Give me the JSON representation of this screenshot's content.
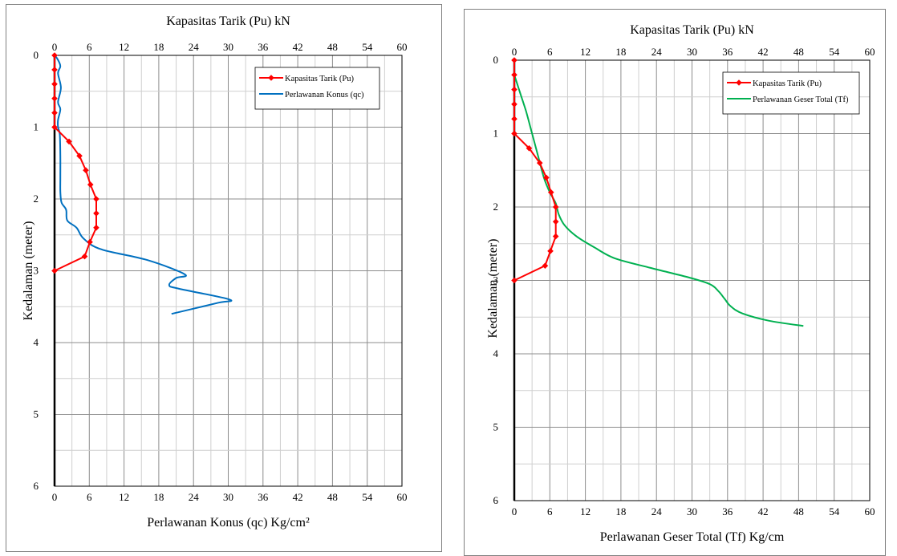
{
  "chart_data": [
    {
      "type": "line",
      "title": "Kapasitas Tarik (Pu) kN",
      "xlabel": "Perlawanan Konus (qc) Kg/cm²",
      "ylabel": "Kedalaman (meter)",
      "xlim": [
        0,
        60
      ],
      "ylim": [
        0,
        6
      ],
      "y_inverted": true,
      "x_ticks": [
        "0",
        "6",
        "12",
        "18",
        "24",
        "30",
        "36",
        "42",
        "48",
        "54",
        "60"
      ],
      "y_ticks": [
        "0",
        "1",
        "2",
        "3",
        "4",
        "5",
        "6"
      ],
      "grid": true,
      "legend_position": "top-right",
      "series": [
        {
          "name": "Kapasitas Tarik (Pu)",
          "color": "#ff0000",
          "marker": "diamond",
          "x": [
            0,
            0,
            0,
            0,
            0,
            0,
            2.5,
            4.3,
            5.4,
            6.2,
            7.2,
            7.2,
            7.2,
            6.1,
            5.2,
            0
          ],
          "y": [
            0,
            0.2,
            0.4,
            0.6,
            0.8,
            1.0,
            1.2,
            1.4,
            1.6,
            1.8,
            2.0,
            2.2,
            2.4,
            2.6,
            2.8,
            3.0
          ]
        },
        {
          "name": "Perlawanan Konus (qc)",
          "color": "#0070c0",
          "marker": "none",
          "x": [
            0,
            0.5,
            1.0,
            0.6,
            1.1,
            0.6,
            1.0,
            0.6,
            0.6,
            0.9,
            1.0,
            1.0,
            1.0,
            1.2,
            2.0,
            2.2,
            3.8,
            5.0,
            8.0,
            16.0,
            22.5,
            21.0,
            19.8,
            21.5,
            30.2,
            28.0,
            20.2
          ],
          "y": [
            0,
            0.05,
            0.15,
            0.25,
            0.45,
            0.65,
            0.75,
            0.9,
            1.0,
            1.1,
            1.4,
            1.7,
            1.9,
            2.05,
            2.15,
            2.3,
            2.4,
            2.55,
            2.7,
            2.85,
            3.05,
            3.1,
            3.2,
            3.25,
            3.4,
            3.45,
            3.6
          ]
        }
      ]
    },
    {
      "type": "line",
      "title": "Kapasitas Tarik (Pu) kN",
      "xlabel": "Perlawanan Geser Total (Tf) Kg/cm",
      "ylabel": "Kedalaman (meter)",
      "xlim": [
        0,
        60
      ],
      "ylim": [
        0,
        6
      ],
      "y_inverted": true,
      "x_ticks": [
        "0",
        "6",
        "12",
        "18",
        "24",
        "30",
        "36",
        "42",
        "48",
        "54",
        "60"
      ],
      "y_ticks": [
        "0",
        "1",
        "2",
        "3",
        "4",
        "5",
        "6"
      ],
      "grid": true,
      "legend_position": "top-right",
      "series": [
        {
          "name": "Kapasitas Tarik (Pu)",
          "color": "#ff0000",
          "marker": "diamond",
          "x": [
            0,
            0,
            0,
            0,
            0,
            0,
            2.5,
            4.3,
            5.4,
            6.2,
            7.0,
            7.0,
            7.0,
            6.1,
            5.2,
            0
          ],
          "y": [
            0,
            0.2,
            0.4,
            0.6,
            0.8,
            1.0,
            1.2,
            1.4,
            1.6,
            1.8,
            2.0,
            2.2,
            2.4,
            2.6,
            2.8,
            3.0
          ]
        },
        {
          "name": "Perlawanan Geser Total (Tf)",
          "color": "#00b050",
          "marker": "none",
          "x": [
            0,
            1.0,
            2.0,
            3.0,
            4.0,
            5.0,
            6.0,
            7.0,
            7.5,
            8.5,
            10.5,
            13.5,
            17.0,
            23.0,
            29.0,
            33.0,
            34.5,
            35.5,
            36.5,
            38.5,
            43.0,
            48.8
          ],
          "y": [
            0.2,
            0.45,
            0.7,
            1.0,
            1.3,
            1.6,
            1.8,
            1.95,
            2.1,
            2.25,
            2.4,
            2.55,
            2.7,
            2.83,
            2.95,
            3.05,
            3.15,
            3.25,
            3.35,
            3.45,
            3.55,
            3.62
          ]
        }
      ]
    }
  ]
}
